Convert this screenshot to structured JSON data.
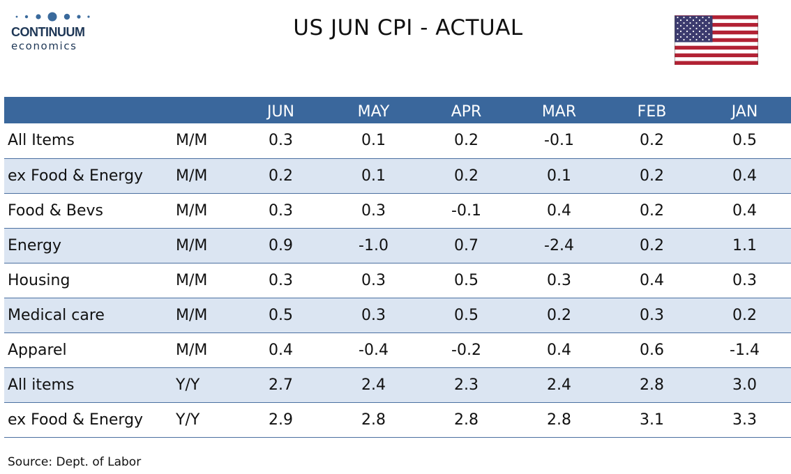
{
  "header": {
    "logo_name": "CONTINUUM",
    "logo_sub": "economics",
    "title": "US JUN CPI - ACTUAL",
    "flag_icon": "us-flag-icon"
  },
  "colors": {
    "header_fill": "#3a679c",
    "band_fill": "#dbe5f2",
    "rule": "#4a6fa0",
    "brand": "#1e3756"
  },
  "chart_data": {
    "type": "table",
    "title": "US JUN CPI - ACTUAL",
    "columns": [
      "",
      "",
      "JUN",
      "MAY",
      "APR",
      "MAR",
      "FEB",
      "JAN"
    ],
    "rows": [
      {
        "label": "All Items",
        "basis": "M/M",
        "values": [
          "0.3",
          "0.1",
          "0.2",
          "-0.1",
          "0.2",
          "0.5"
        ]
      },
      {
        "label": "ex Food & Energy",
        "basis": "M/M",
        "values": [
          "0.2",
          "0.1",
          "0.2",
          "0.1",
          "0.2",
          "0.4"
        ]
      },
      {
        "label": "Food & Bevs",
        "basis": "M/M",
        "values": [
          "0.3",
          "0.3",
          "-0.1",
          "0.4",
          "0.2",
          "0.4"
        ]
      },
      {
        "label": "Energy",
        "basis": "M/M",
        "values": [
          "0.9",
          "-1.0",
          "0.7",
          "-2.4",
          "0.2",
          "1.1"
        ]
      },
      {
        "label": "Housing",
        "basis": "M/M",
        "values": [
          "0.3",
          "0.3",
          "0.5",
          "0.3",
          "0.4",
          "0.3"
        ]
      },
      {
        "label": "Medical care",
        "basis": "M/M",
        "values": [
          "0.5",
          "0.3",
          "0.5",
          "0.2",
          "0.3",
          "0.2"
        ]
      },
      {
        "label": "Apparel",
        "basis": "M/M",
        "values": [
          "0.4",
          "-0.4",
          "-0.2",
          "0.4",
          "0.6",
          "-1.4"
        ]
      },
      {
        "label": "All items",
        "basis": "Y/Y",
        "values": [
          "2.7",
          "2.4",
          "2.3",
          "2.4",
          "2.8",
          "3.0"
        ]
      },
      {
        "label": "ex Food & Energy",
        "basis": "Y/Y",
        "values": [
          "2.9",
          "2.8",
          "2.8",
          "2.8",
          "3.1",
          "3.3"
        ]
      }
    ],
    "source": "Source: Dept. of Labor"
  }
}
